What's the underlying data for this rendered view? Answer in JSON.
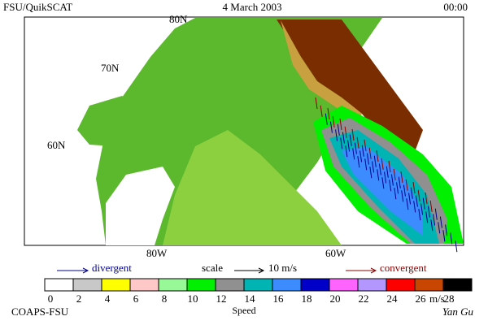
{
  "header": {
    "left": "FSU/QuikSCAT",
    "center": "4 March 2003",
    "right": "00:00"
  },
  "map": {
    "lat_labels": [
      "80N",
      "70N",
      "60N"
    ],
    "lon_labels": [
      "80W",
      "60W"
    ]
  },
  "legend": {
    "divergent": "divergent",
    "scale": "scale",
    "scale_value": "10 m/s",
    "convergent": "convergent"
  },
  "colorbar": {
    "ticks": [
      0,
      2,
      4,
      6,
      8,
      10,
      12,
      14,
      16,
      18,
      20,
      22,
      24,
      26,
      28
    ],
    "colors": [
      "#ffffff",
      "#c8c8c8",
      "#ffff00",
      "#ffc8c8",
      "#98f898",
      "#00f000",
      "#909090",
      "#00b4b4",
      "#3c8cff",
      "#0000c8",
      "#ff64ff",
      "#b496ff",
      "#ff0000",
      "#c84600",
      "#000000"
    ],
    "unit": "m/s",
    "label": "Speed"
  },
  "footer": {
    "left": "COAPS-FSU",
    "right": "Yan Gu"
  }
}
